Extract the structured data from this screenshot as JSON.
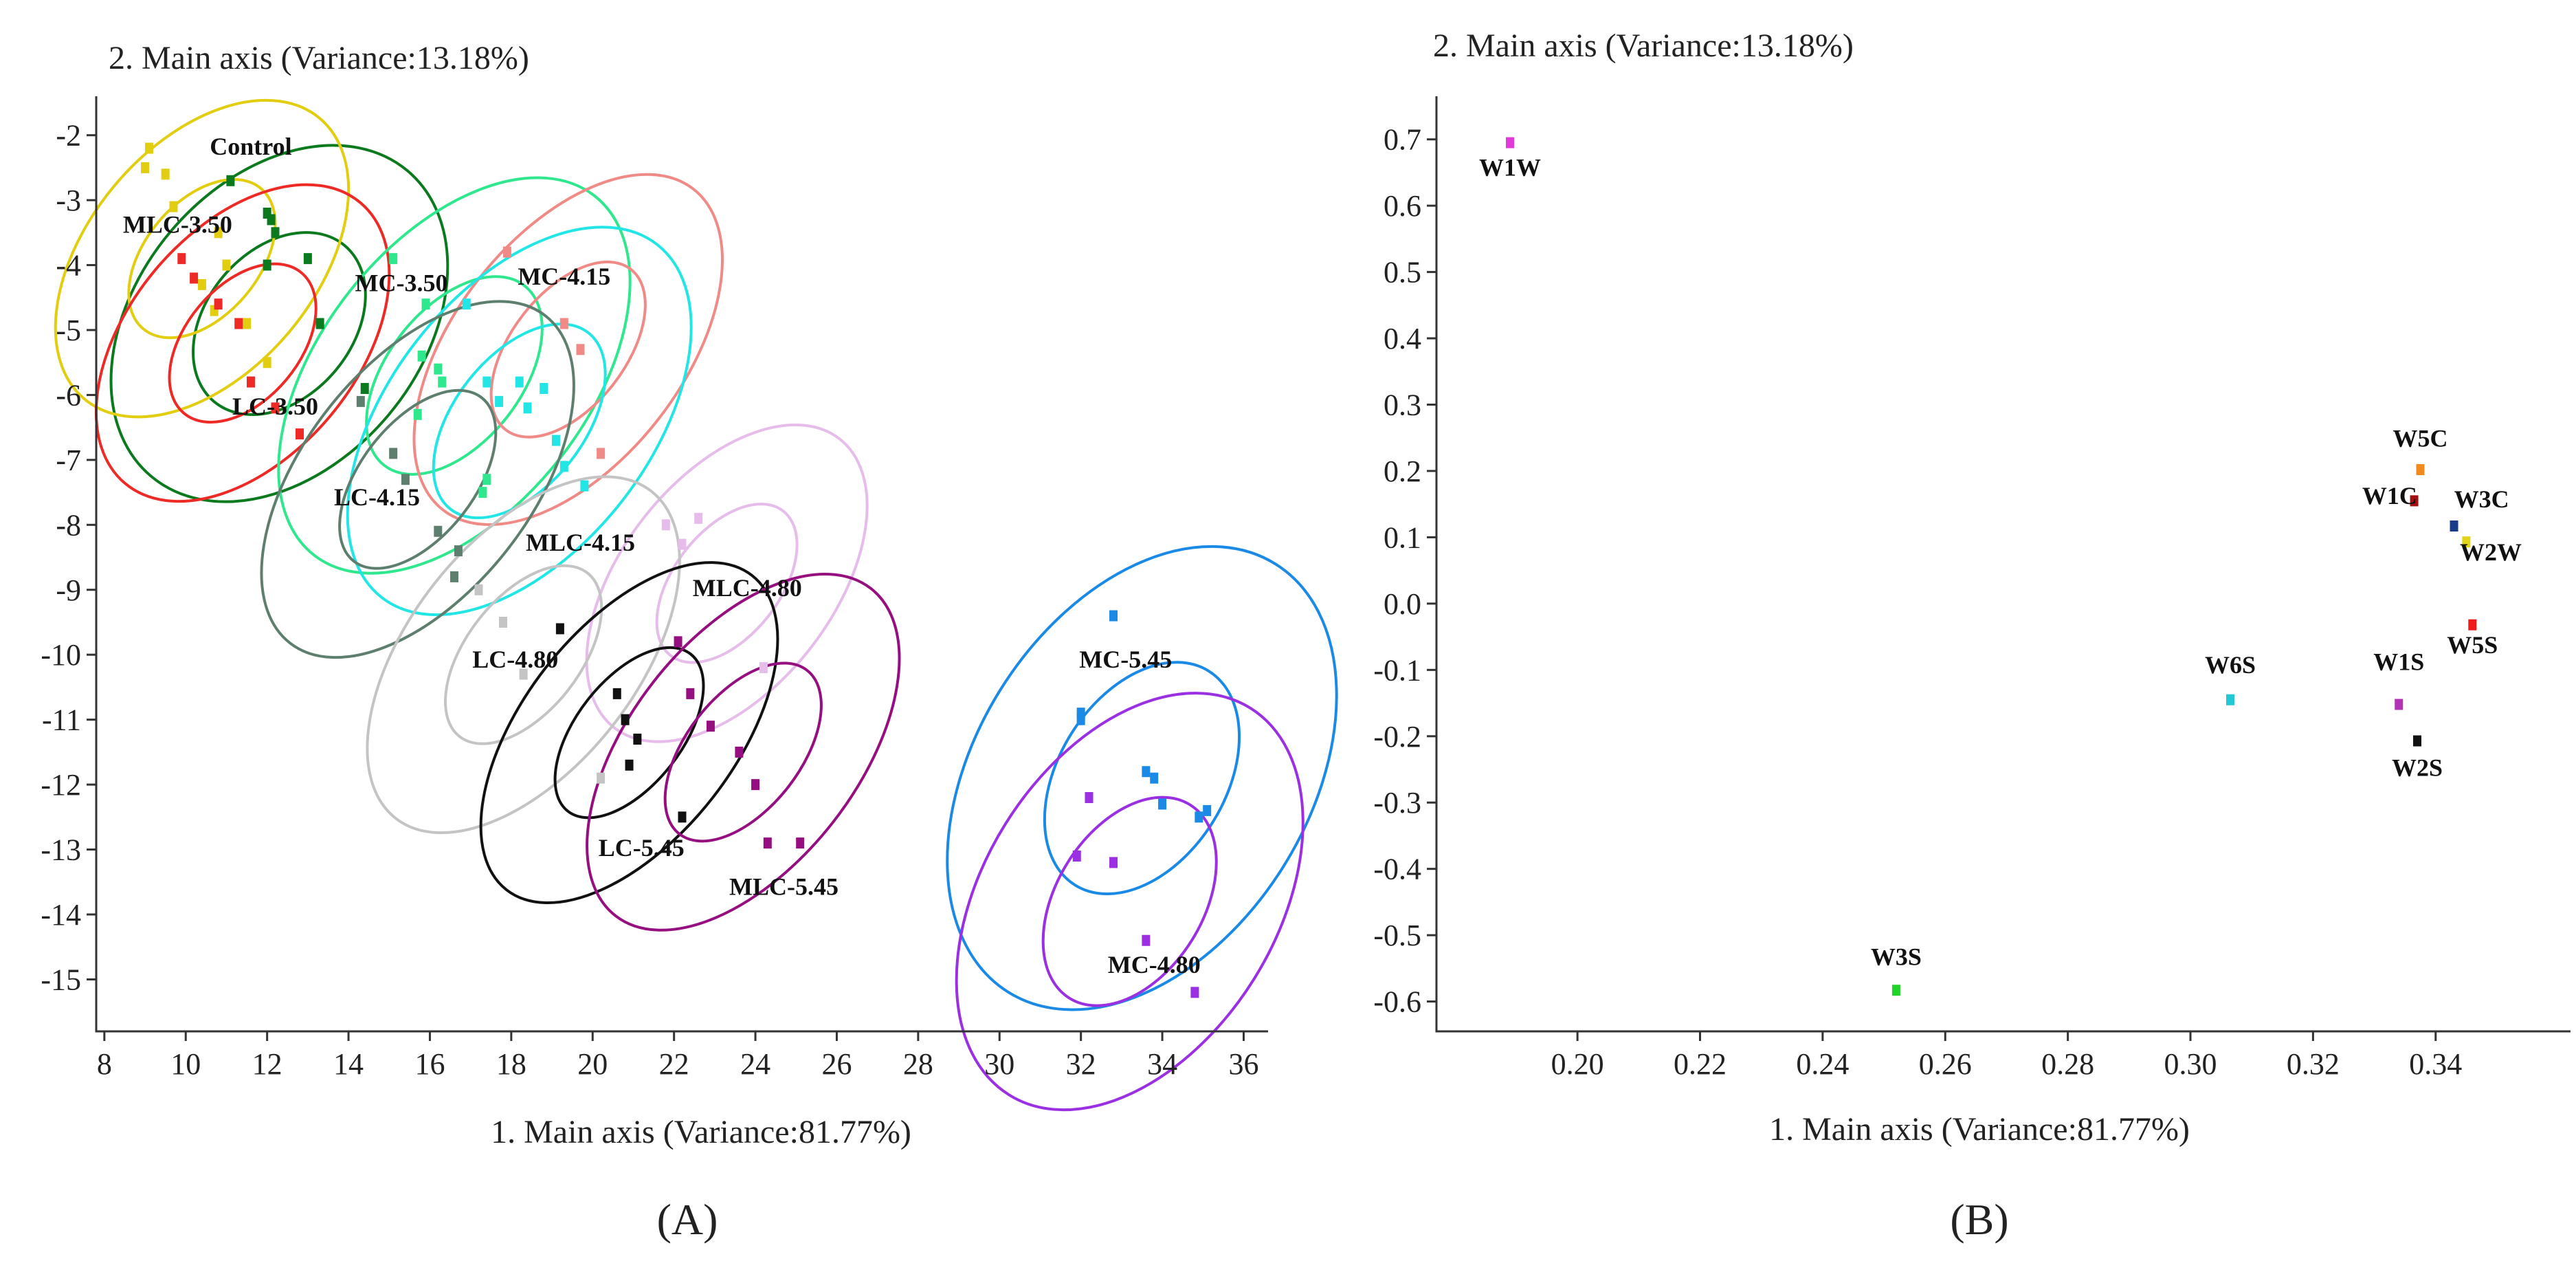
{
  "colors": {
    "axis": "#333333",
    "text": "#222222"
  },
  "chart_data": [
    {
      "type": "scatter",
      "panel": "A",
      "xlabel": "1. Main axis (Variance:81.77%)",
      "ylabel": "2. Main axis (Variance:13.18%)",
      "xlim": [
        7.8,
        36.6
      ],
      "ylim": [
        -15.8,
        -1.4
      ],
      "xticks": [
        8,
        10,
        12,
        14,
        16,
        18,
        20,
        22,
        24,
        26,
        28,
        30,
        32,
        34,
        36
      ],
      "yticks": [
        -2,
        -3,
        -4,
        -5,
        -6,
        -7,
        -8,
        -9,
        -10,
        -11,
        -12,
        -13,
        -14,
        -15
      ],
      "grid": false,
      "groups": [
        {
          "name": "Control",
          "color": "#0b7a1e",
          "label_at": [
            11.6,
            -2.3
          ],
          "ellipse": {
            "cx": 12.3,
            "cy": -4.9,
            "rx": 7.0,
            "ry": 9.8,
            "angle": 40
          },
          "inner_ellipse": {
            "cx": 12.3,
            "cy": -4.9,
            "rx": 3.6,
            "ry": 5.0,
            "angle": 40
          },
          "points": [
            [
              11.1,
              -2.7
            ],
            [
              12.0,
              -3.2
            ],
            [
              12.1,
              -3.3
            ],
            [
              12.2,
              -3.5
            ],
            [
              12.0,
              -4.0
            ],
            [
              13.0,
              -3.9
            ],
            [
              13.3,
              -4.9
            ],
            [
              14.4,
              -5.9
            ]
          ]
        },
        {
          "name": "MLC-3.50",
          "color": "#e2cd10",
          "label_at": [
            9.8,
            -3.5
          ],
          "ellipse": {
            "cx": 10.4,
            "cy": -3.9,
            "rx": 5.6,
            "ry": 9.0,
            "angle": 40
          },
          "inner_ellipse": {
            "cx": 10.4,
            "cy": -3.9,
            "rx": 2.8,
            "ry": 4.5,
            "angle": 40
          },
          "points": [
            [
              9.1,
              -2.2
            ],
            [
              9.0,
              -2.5
            ],
            [
              9.5,
              -2.6
            ],
            [
              9.7,
              -3.1
            ],
            [
              10.8,
              -3.5
            ],
            [
              11.0,
              -4.0
            ],
            [
              10.4,
              -4.3
            ],
            [
              10.7,
              -4.7
            ],
            [
              11.5,
              -4.9
            ],
            [
              12.0,
              -5.5
            ]
          ]
        },
        {
          "name": "LC-3.50",
          "color": "#ee2a26",
          "label_at": [
            12.2,
            -6.3
          ],
          "ellipse": {
            "cx": 11.4,
            "cy": -5.2,
            "rx": 5.6,
            "ry": 9.0,
            "angle": 40
          },
          "inner_ellipse": {
            "cx": 11.4,
            "cy": -5.2,
            "rx": 2.8,
            "ry": 4.5,
            "angle": 40
          },
          "points": [
            [
              9.9,
              -3.9
            ],
            [
              10.2,
              -4.2
            ],
            [
              10.8,
              -4.6
            ],
            [
              11.3,
              -4.9
            ],
            [
              11.6,
              -5.8
            ],
            [
              12.2,
              -6.2
            ],
            [
              12.8,
              -6.6
            ]
          ]
        },
        {
          "name": "MC-3.50",
          "color": "#2fe88e",
          "label_at": [
            15.3,
            -4.4
          ],
          "ellipse": {
            "cx": 16.6,
            "cy": -5.7,
            "rx": 6.6,
            "ry": 11.2,
            "angle": 38
          },
          "inner_ellipse": {
            "cx": 16.6,
            "cy": -5.7,
            "rx": 3.3,
            "ry": 5.6,
            "angle": 38
          },
          "points": [
            [
              15.1,
              -3.9
            ],
            [
              15.9,
              -4.6
            ],
            [
              15.8,
              -5.4
            ],
            [
              16.2,
              -5.6
            ],
            [
              16.3,
              -5.8
            ],
            [
              15.7,
              -6.3
            ],
            [
              17.4,
              -7.3
            ],
            [
              17.3,
              -7.5
            ]
          ]
        },
        {
          "name": "MC-4.15",
          "color": "#f08a86",
          "label_at": [
            19.3,
            -4.3
          ],
          "ellipse": {
            "cx": 19.4,
            "cy": -5.3,
            "rx": 5.6,
            "ry": 10.0,
            "angle": 38
          },
          "inner_ellipse": {
            "cx": 19.4,
            "cy": -5.3,
            "rx": 2.8,
            "ry": 5.0,
            "angle": 38
          },
          "points": [
            [
              17.9,
              -3.8
            ],
            [
              19.3,
              -4.9
            ],
            [
              19.7,
              -5.3
            ],
            [
              20.2,
              -6.9
            ]
          ]
        },
        {
          "name": "MLC-4.15",
          "color": "#22e6e6",
          "label_at": [
            19.7,
            -8.4
          ],
          "ellipse": {
            "cx": 18.2,
            "cy": -6.4,
            "rx": 6.4,
            "ry": 11.0,
            "angle": 38
          },
          "inner_ellipse": {
            "cx": 18.2,
            "cy": -6.4,
            "rx": 3.2,
            "ry": 5.5,
            "angle": 38
          },
          "points": [
            [
              16.9,
              -4.6
            ],
            [
              17.4,
              -5.8
            ],
            [
              17.7,
              -6.1
            ],
            [
              18.2,
              -5.8
            ],
            [
              18.4,
              -6.2
            ],
            [
              18.8,
              -5.9
            ],
            [
              19.1,
              -6.7
            ],
            [
              19.3,
              -7.1
            ],
            [
              19.8,
              -7.4
            ]
          ]
        },
        {
          "name": "LC-4.15",
          "color": "#5e7f6e",
          "label_at": [
            14.7,
            -7.7
          ],
          "ellipse": {
            "cx": 15.7,
            "cy": -7.3,
            "rx": 5.6,
            "ry": 10.2,
            "angle": 38
          },
          "inner_ellipse": {
            "cx": 15.7,
            "cy": -7.3,
            "rx": 2.8,
            "ry": 5.1,
            "angle": 38
          },
          "points": [
            [
              14.3,
              -6.1
            ],
            [
              15.1,
              -6.9
            ],
            [
              15.4,
              -7.3
            ],
            [
              16.7,
              -8.4
            ],
            [
              16.6,
              -8.8
            ],
            [
              16.2,
              -8.1
            ]
          ]
        },
        {
          "name": "MLC-4.80",
          "color": "#e6bcea",
          "label_at": [
            23.8,
            -9.1
          ],
          "ellipse": {
            "cx": 23.3,
            "cy": -8.9,
            "rx": 5.2,
            "ry": 9.0,
            "angle": 38
          },
          "inner_ellipse": {
            "cx": 23.3,
            "cy": -8.9,
            "rx": 2.6,
            "ry": 4.5,
            "angle": 38
          },
          "points": [
            [
              21.8,
              -8.0
            ],
            [
              22.6,
              -7.9
            ],
            [
              22.2,
              -8.3
            ],
            [
              24.2,
              -10.2
            ]
          ]
        },
        {
          "name": "LC-4.80",
          "color": "#c4c4c4",
          "label_at": [
            18.1,
            -10.2
          ],
          "ellipse": {
            "cx": 18.3,
            "cy": -10.0,
            "rx": 5.6,
            "ry": 10.2,
            "angle": 38
          },
          "inner_ellipse": {
            "cx": 18.3,
            "cy": -10.0,
            "rx": 2.8,
            "ry": 5.1,
            "angle": 38
          },
          "points": [
            [
              17.2,
              -9.0
            ],
            [
              17.8,
              -9.5
            ],
            [
              18.3,
              -10.3
            ],
            [
              20.2,
              -11.9
            ]
          ]
        },
        {
          "name": "LC-5.45",
          "color": "#111111",
          "label_at": [
            21.2,
            -13.1
          ],
          "ellipse": {
            "cx": 20.9,
            "cy": -11.2,
            "rx": 5.2,
            "ry": 9.8,
            "angle": 38
          },
          "inner_ellipse": {
            "cx": 20.9,
            "cy": -11.2,
            "rx": 2.6,
            "ry": 4.9,
            "angle": 38
          },
          "points": [
            [
              19.2,
              -9.6
            ],
            [
              20.6,
              -10.6
            ],
            [
              20.8,
              -11.0
            ],
            [
              21.1,
              -11.3
            ],
            [
              20.9,
              -11.7
            ],
            [
              22.2,
              -12.5
            ]
          ]
        },
        {
          "name": "MLC-5.45",
          "color": "#960f80",
          "label_at": [
            24.7,
            -13.7
          ],
          "ellipse": {
            "cx": 23.7,
            "cy": -11.5,
            "rx": 5.6,
            "ry": 10.2,
            "angle": 38
          },
          "inner_ellipse": {
            "cx": 23.7,
            "cy": -11.5,
            "rx": 2.8,
            "ry": 5.1,
            "angle": 38
          },
          "points": [
            [
              22.1,
              -9.8
            ],
            [
              22.4,
              -10.6
            ],
            [
              22.9,
              -11.1
            ],
            [
              23.6,
              -11.5
            ],
            [
              24.0,
              -12.0
            ],
            [
              24.3,
              -12.9
            ],
            [
              25.1,
              -12.9
            ]
          ]
        },
        {
          "name": "MC-5.45",
          "color": "#1a8ae6",
          "label_at": [
            33.1,
            -10.2
          ],
          "ellipse": {
            "cx": 33.5,
            "cy": -11.9,
            "rx": 8.2,
            "ry": 12.4,
            "angle": 32
          },
          "inner_ellipse": {
            "cx": 33.5,
            "cy": -11.9,
            "rx": 4.1,
            "ry": 6.2,
            "angle": 32
          },
          "points": [
            [
              32.8,
              -9.4
            ],
            [
              32.0,
              -11.0
            ],
            [
              32.0,
              -10.9
            ],
            [
              33.6,
              -11.8
            ],
            [
              33.8,
              -11.9
            ],
            [
              34.0,
              -12.3
            ],
            [
              34.9,
              -12.5
            ],
            [
              35.1,
              -12.4
            ]
          ]
        },
        {
          "name": "MC-4.80",
          "color": "#9b2fe2",
          "label_at": [
            33.8,
            -14.9
          ],
          "ellipse": {
            "cx": 33.2,
            "cy": -13.8,
            "rx": 7.2,
            "ry": 11.2,
            "angle": 32
          },
          "inner_ellipse": {
            "cx": 33.2,
            "cy": -13.8,
            "rx": 3.6,
            "ry": 5.6,
            "angle": 32
          },
          "points": [
            [
              32.2,
              -12.2
            ],
            [
              31.9,
              -13.1
            ],
            [
              32.8,
              -13.2
            ],
            [
              33.6,
              -14.4
            ],
            [
              34.8,
              -15.2
            ]
          ]
        }
      ]
    },
    {
      "type": "scatter",
      "panel": "B",
      "xlabel": "1. Main axis (Variance:81.77%)",
      "ylabel": "2. Main axis (Variance:13.18%)",
      "xlim": [
        0.177,
        0.362
      ],
      "ylim": [
        -0.645,
        0.765
      ],
      "xticks": [
        0.2,
        0.22,
        0.24,
        0.26,
        0.28,
        0.3,
        0.32,
        0.34
      ],
      "yticks": [
        0.7,
        0.6,
        0.5,
        0.4,
        0.3,
        0.2,
        0.1,
        0.0,
        -0.1,
        -0.2,
        -0.3,
        -0.4,
        -0.5,
        -0.6
      ],
      "xtick_labels": [
        "0.20",
        "0.22",
        "0.24",
        "0.26",
        "0.28",
        "0.30",
        "0.32",
        "0.34"
      ],
      "ytick_labels": [
        "0.7",
        "0.6",
        "0.5",
        "0.4",
        "0.3",
        "0.2",
        "0.1",
        "0.0",
        "-0.1",
        "-0.2",
        "-0.3",
        "-0.4",
        "-0.5",
        "-0.6"
      ],
      "grid": false,
      "points": [
        {
          "name": "W1W",
          "x": 0.189,
          "y": 0.695,
          "color": "#e23ad8",
          "label_at": [
            0.189,
            0.645
          ]
        },
        {
          "name": "W5C",
          "x": 0.3375,
          "y": 0.202,
          "color": "#f28a1c",
          "label_at": [
            0.3375,
            0.237
          ]
        },
        {
          "name": "W1C",
          "x": 0.3365,
          "y": 0.155,
          "color": "#a51010",
          "label_at": [
            0.3325,
            0.15
          ]
        },
        {
          "name": "W3C",
          "x": 0.343,
          "y": 0.117,
          "color": "#1a3a8a",
          "label_at": [
            0.3475,
            0.145
          ]
        },
        {
          "name": "W2W",
          "x": 0.345,
          "y": 0.093,
          "color": "#e2d41a",
          "label_at": [
            0.349,
            0.065
          ]
        },
        {
          "name": "W5S",
          "x": 0.346,
          "y": -0.032,
          "color": "#ee1c1c",
          "label_at": [
            0.346,
            -0.075
          ]
        },
        {
          "name": "W6S",
          "x": 0.3065,
          "y": -0.145,
          "color": "#22c8d4",
          "label_at": [
            0.3065,
            -0.105
          ]
        },
        {
          "name": "W1S",
          "x": 0.334,
          "y": -0.152,
          "color": "#b433b4",
          "label_at": [
            0.334,
            -0.1
          ]
        },
        {
          "name": "W2S",
          "x": 0.337,
          "y": -0.207,
          "color": "#111111",
          "label_at": [
            0.337,
            -0.26
          ]
        },
        {
          "name": "W3S",
          "x": 0.252,
          "y": -0.583,
          "color": "#22d42a",
          "label_at": [
            0.252,
            -0.545
          ]
        }
      ]
    }
  ],
  "panel_labels": {
    "a": "(A)",
    "b": "(B)"
  }
}
